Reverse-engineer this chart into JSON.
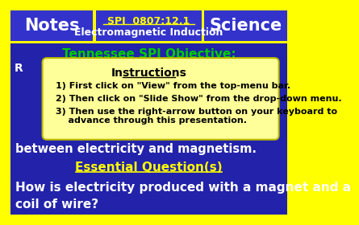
{
  "bg_color": "#FFFF00",
  "header_bg": "#3333CC",
  "body_bg": "#2222AA",
  "notes_text": "Notes",
  "science_text": "Science",
  "spi_line1": "SPI  0807:12.1",
  "spi_line2": "Electromagnetic Induction",
  "header_text_color": "#FFFFFF",
  "spi_title_color": "#FFFF00",
  "tn_obj_text": "Tennessee SPI Objective:",
  "tn_obj_color": "#00CC00",
  "body_text_color": "#FFFFFF",
  "essential_q_text": "Essential Question(s)",
  "essential_q_color": "#FFFF00",
  "how_text": "How is electricity produced with a magnet and a\ncoil of wire?",
  "between_text": "between electricity and magnetism.",
  "instr_title": "Instructions",
  "instr_line1": "1) First click on \"View\" from the top-menu bar.",
  "instr_line2": "2) Then click on \"Slide Show\" from the drop-down menu.",
  "instr_line3": "3) Then use the right-arrow button on your keyboard to",
  "instr_line4": "    advance through this presentation.",
  "instr_bg": "#FFFF99",
  "instr_text_color": "#000000",
  "partial_char": "R"
}
